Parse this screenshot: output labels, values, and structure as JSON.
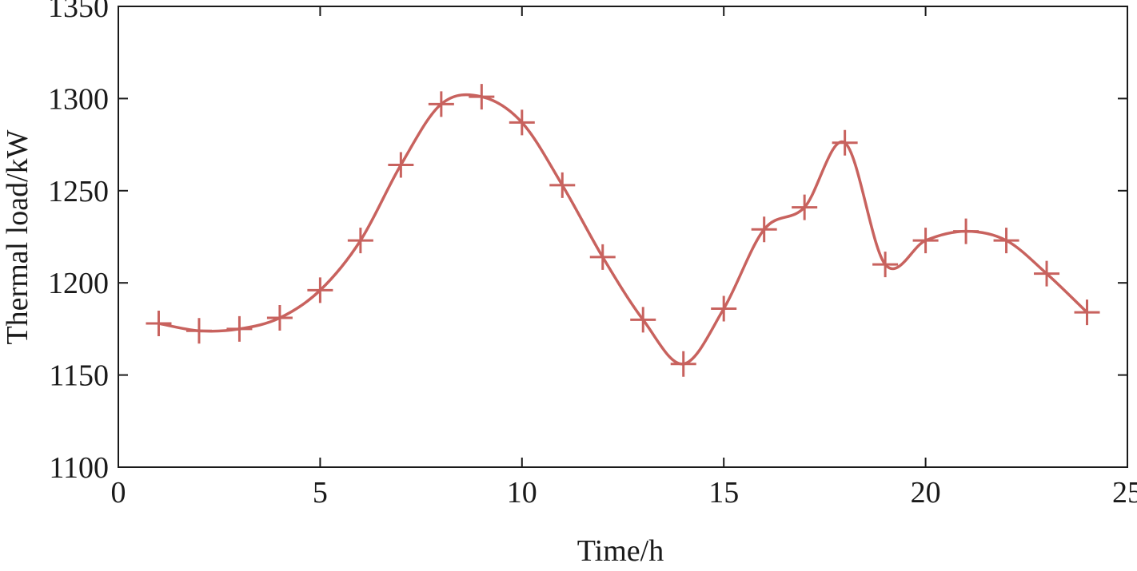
{
  "chart_data": {
    "type": "line",
    "xlabel": "Time/h",
    "ylabel": "Thermal load/kW",
    "xlim": [
      0,
      25
    ],
    "ylim": [
      1100,
      1350
    ],
    "xticks": [
      0,
      5,
      10,
      15,
      20,
      25
    ],
    "yticks": [
      1100,
      1150,
      1200,
      1250,
      1300,
      1350
    ],
    "grid": false,
    "legend": "none",
    "series": [
      {
        "color": "#c8625e",
        "marker": "plus",
        "x": [
          1,
          2,
          3,
          4,
          5,
          6,
          7,
          8,
          9,
          10,
          11,
          12,
          13,
          14,
          15,
          16,
          17,
          18,
          19,
          20,
          21,
          22,
          23,
          24
        ],
        "y": [
          1178,
          1174,
          1175,
          1181,
          1196,
          1223,
          1264,
          1297,
          1301,
          1287,
          1253,
          1214,
          1180,
          1156,
          1186,
          1229,
          1241,
          1276,
          1210,
          1223,
          1228,
          1223,
          1205,
          1184
        ]
      }
    ]
  }
}
